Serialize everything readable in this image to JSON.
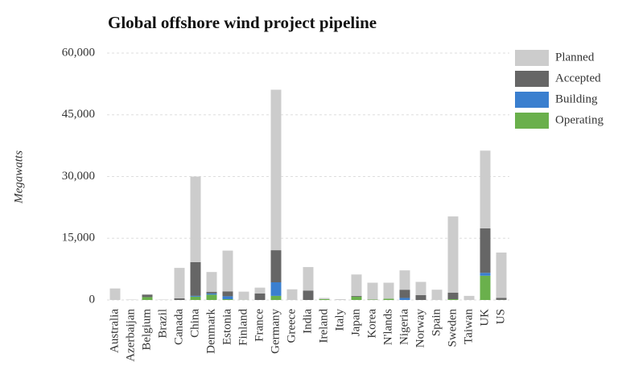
{
  "chart_data": {
    "type": "stacked_bar",
    "title": "Global offshore wind project pipeline",
    "y_label": "Megawatts",
    "categories": [
      "Australia",
      "Azerbaijan",
      "Belgium",
      "Brazil",
      "Canada",
      "China",
      "Denmark",
      "Estonia",
      "Finland",
      "France",
      "Germany",
      "Greece",
      "India",
      "Ireland",
      "Italy",
      "Japan",
      "Korea",
      "N'lands",
      "Nigeria",
      "Norway",
      "Spain",
      "Sweden",
      "Taiwan",
      "UK",
      "US"
    ],
    "series": [
      {
        "name": "Operating",
        "color": "#6ab04c",
        "values": [
          0,
          0,
          700,
          0,
          0,
          800,
          1300,
          200,
          30,
          0,
          1000,
          0,
          0,
          200,
          0,
          800,
          100,
          300,
          0,
          0,
          0,
          200,
          0,
          5900,
          30
        ]
      },
      {
        "name": "Building",
        "color": "#3a7fcf",
        "values": [
          0,
          0,
          0,
          0,
          0,
          200,
          300,
          700,
          0,
          0,
          3300,
          0,
          0,
          0,
          0,
          0,
          0,
          0,
          500,
          0,
          0,
          0,
          0,
          700,
          0
        ]
      },
      {
        "name": "Accepted",
        "color": "#666666",
        "values": [
          0,
          0,
          600,
          0,
          400,
          8200,
          400,
          1200,
          0,
          1600,
          7800,
          0,
          2300,
          0,
          0,
          200,
          0,
          0,
          2000,
          1200,
          0,
          1600,
          0,
          10800,
          500
        ]
      },
      {
        "name": "Planned",
        "color": "#cccccc",
        "values": [
          2800,
          100,
          100,
          100,
          7400,
          20800,
          4800,
          9900,
          2000,
          1400,
          39000,
          2600,
          5700,
          300,
          200,
          5200,
          4100,
          3900,
          4700,
          3200,
          2500,
          18500,
          1000,
          18900,
          11000
        ]
      }
    ],
    "ylim": [
      0,
      60000
    ],
    "yticks": [
      {
        "value": 0,
        "label": "0"
      },
      {
        "value": 15000,
        "label": "15,000"
      },
      {
        "value": 30000,
        "label": "30,000"
      },
      {
        "value": 45000,
        "label": "45,000"
      },
      {
        "value": 60000,
        "label": "60,000"
      }
    ],
    "grid": true
  }
}
